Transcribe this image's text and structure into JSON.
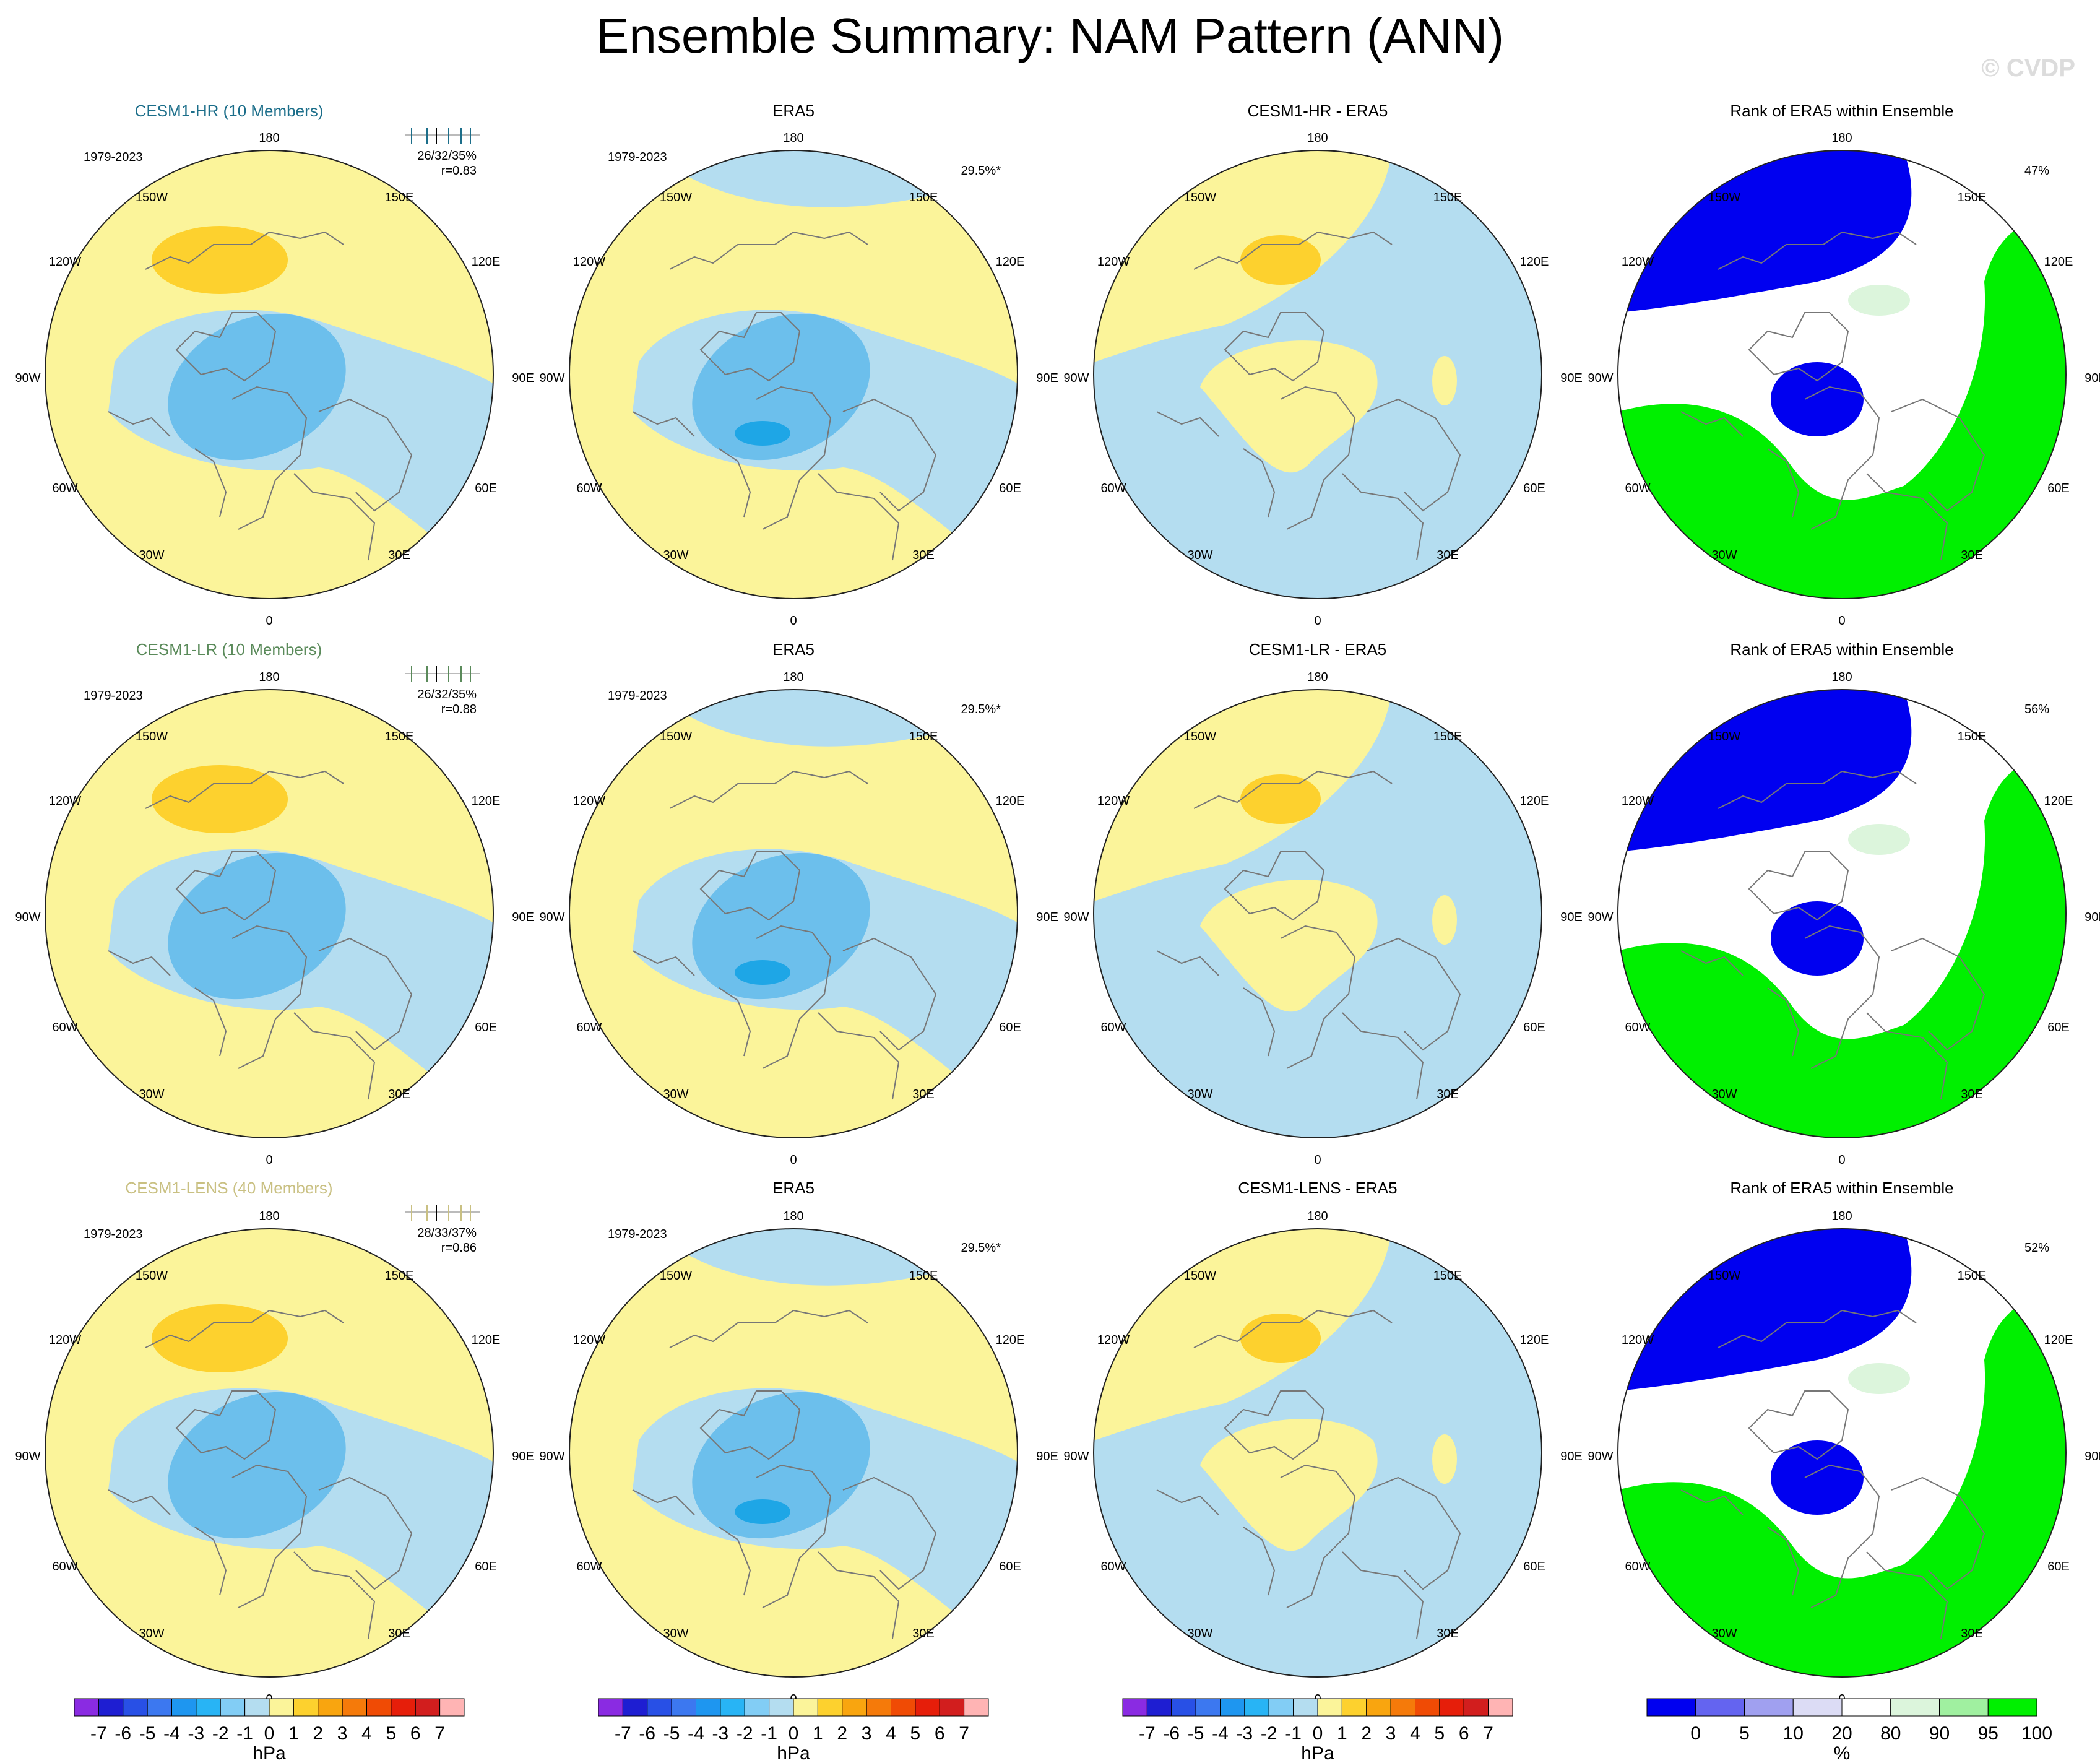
{
  "title": "Ensemble Summary: NAM Pattern (ANN)",
  "watermark": "© CVDP",
  "lon_labels": {
    "top": "180",
    "bottom": "0",
    "left_150": "150W",
    "left_120": "120W",
    "left_90": "90W",
    "left_60": "60W",
    "left_30": "30W",
    "right_150": "150E",
    "right_120": "120E",
    "right_90": "90E",
    "right_60": "60E",
    "right_30": "30E"
  },
  "colors": {
    "title_hr": "#1c6e8a",
    "title_lr": "#5a8a5a",
    "title_lens": "#c9c082",
    "yellow": "#fbf49a",
    "light_blue": "#b4ddf0",
    "orange_1": "#fdd12e",
    "orange_2": "#f9a50f",
    "blue_1": "#6cbfec",
    "blue_2": "#1ea6e6",
    "rank_blue": "#0000f0",
    "rank_lightblue": "#dcdcf5",
    "rank_white": "#ffffff",
    "rank_lightgreen": "#dcf5dc",
    "rank_green": "#00f000"
  },
  "rows": [
    {
      "model_title": "CESM1-HR (10 Members)",
      "title_color": "#1c6e8a",
      "period": "1979-2023",
      "stats": "26/32/35%",
      "corr": "r=0.83",
      "era5_title": "ERA5",
      "era5_period": "1979-2023",
      "era5_pct": "29.5%*",
      "diff_title": "CESM1-HR - ERA5",
      "rank_title": "Rank of ERA5 within Ensemble",
      "rank_pct": "47%"
    },
    {
      "model_title": "CESM1-LR (10 Members)",
      "title_color": "#5a8a5a",
      "period": "1979-2023",
      "stats": "26/32/35%",
      "corr": "r=0.88",
      "era5_title": "ERA5",
      "era5_period": "1979-2023",
      "era5_pct": "29.5%*",
      "diff_title": "CESM1-LR - ERA5",
      "rank_title": "Rank of ERA5 within Ensemble",
      "rank_pct": "56%"
    },
    {
      "model_title": "CESM1-LENS (40 Members)",
      "title_color": "#c9c082",
      "period": "1979-2023",
      "stats": "28/33/37%",
      "corr": "r=0.86",
      "era5_title": "ERA5",
      "era5_period": "1979-2023",
      "era5_pct": "29.5%*",
      "diff_title": "CESM1-LENS - ERA5",
      "rank_title": "Rank of ERA5 within Ensemble",
      "rank_pct": "52%"
    }
  ],
  "colorbar_hpa": {
    "units": "hPa",
    "labels": [
      "-7",
      "-6",
      "-5",
      "-4",
      "-3",
      "-2",
      "-1",
      "0",
      "1",
      "2",
      "3",
      "4",
      "5",
      "6",
      "7"
    ],
    "colors": [
      "#8a2be2",
      "#1e1ed2",
      "#2850e6",
      "#3c78f0",
      "#1e96f0",
      "#28b4f5",
      "#82cdf5",
      "#b4ddf0",
      "#fbf49a",
      "#fdd12e",
      "#f9a50f",
      "#f57a0a",
      "#f04b05",
      "#e61e0a",
      "#d21e1e",
      "#ffb4b4"
    ]
  },
  "colorbar_rank": {
    "units": "%",
    "labels": [
      "0",
      "5",
      "10",
      "20",
      "80",
      "90",
      "95",
      "100"
    ],
    "colors": [
      "#0000f0",
      "#6464f0",
      "#a0a0f0",
      "#dcdcf5",
      "#ffffff",
      "#dcf5dc",
      "#a0f0a0",
      "#00f000"
    ]
  }
}
